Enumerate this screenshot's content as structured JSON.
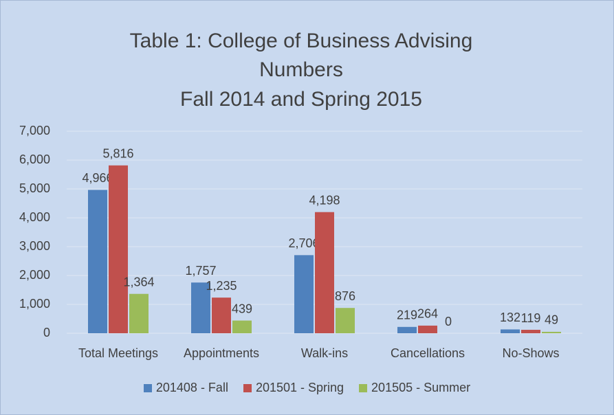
{
  "chart_data": {
    "type": "bar",
    "title": "Table 1: College of Business Advising Numbers",
    "subtitle": "Fall 2014 and Spring 2015",
    "categories": [
      "Total Meetings",
      "Appointments",
      "Walk-ins",
      "Cancellations",
      "No-Shows"
    ],
    "series": [
      {
        "name": "201408 - Fall",
        "color": "#4f81bd",
        "values": [
          4966,
          1757,
          2706,
          219,
          132
        ],
        "value_labels": [
          "4,966",
          "1,757",
          "2,706",
          "219",
          "132"
        ]
      },
      {
        "name": "201501 - Spring",
        "color": "#c0504d",
        "values": [
          5816,
          1235,
          4198,
          264,
          119
        ],
        "value_labels": [
          "5,816",
          "1,235",
          "4,198",
          "264",
          "119"
        ]
      },
      {
        "name": "201505 - Summer",
        "color": "#9bbb59",
        "values": [
          1364,
          439,
          876,
          0,
          49
        ],
        "value_labels": [
          "1,364",
          "439",
          "876",
          "0",
          "49"
        ]
      }
    ],
    "ylim": [
      0,
      7000
    ],
    "yticks": [
      0,
      {
        "value": 1000,
        "label": "1,000"
      },
      {
        "value": 2000,
        "label": "2,000"
      },
      {
        "value": 3000,
        "label": "3,000"
      },
      {
        "value": 4000,
        "label": "4,000"
      },
      {
        "value": 5000,
        "label": "5,000"
      },
      {
        "value": 6000,
        "label": "6,000"
      },
      {
        "value": 7000,
        "label": "7,000"
      }
    ],
    "grid": true,
    "legend": "bottom"
  }
}
